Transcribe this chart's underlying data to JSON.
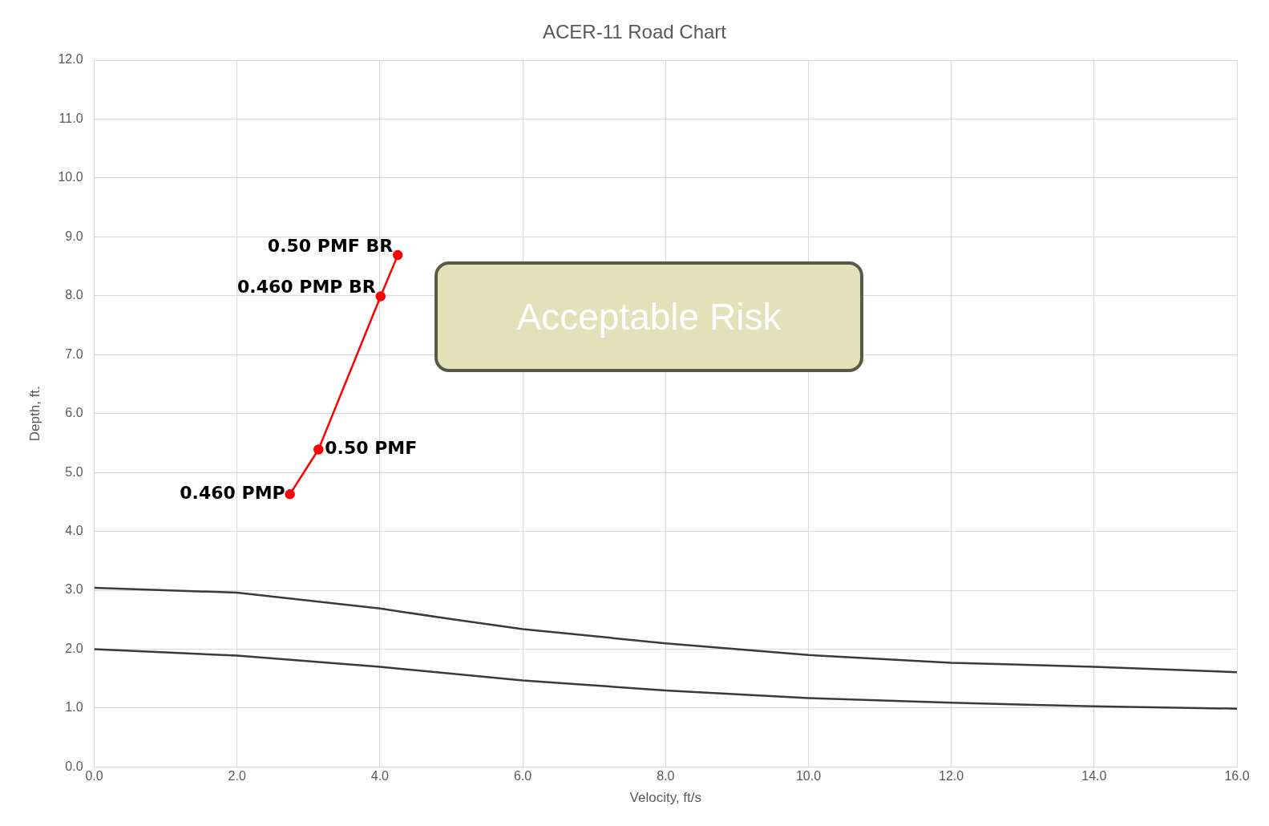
{
  "chart_data": {
    "type": "line",
    "title": "ACER-11 Road Chart",
    "xlabel": "Velocity, ft/s",
    "ylabel": "Depth, ft.",
    "xlim": [
      0,
      16
    ],
    "xticks": [
      {
        "value": 0,
        "label": "0.0"
      },
      {
        "value": 2,
        "label": "2.0"
      },
      {
        "value": 4,
        "label": "4.0"
      },
      {
        "value": 6,
        "label": "6.0"
      },
      {
        "value": 8,
        "label": "8.0"
      },
      {
        "value": 10,
        "label": "10.0"
      },
      {
        "value": 12,
        "label": "12.0"
      },
      {
        "value": 14,
        "label": "14.0"
      },
      {
        "value": 16,
        "label": "16.0"
      }
    ],
    "ylim": [
      0,
      12
    ],
    "yticks": [
      {
        "value": 0,
        "label": "0.0"
      },
      {
        "value": 1,
        "label": "1.0"
      },
      {
        "value": 2,
        "label": "2.0"
      },
      {
        "value": 3,
        "label": "3.0"
      },
      {
        "value": 4,
        "label": "4.0"
      },
      {
        "value": 5,
        "label": "5.0"
      },
      {
        "value": 6,
        "label": "6.0"
      },
      {
        "value": 7,
        "label": "7.0"
      },
      {
        "value": 8,
        "label": "8.0"
      },
      {
        "value": 9,
        "label": "9.0"
      },
      {
        "value": 10,
        "label": "10.0"
      },
      {
        "value": 11,
        "label": "11.0"
      },
      {
        "value": 12,
        "label": "12.0"
      }
    ],
    "grid": true,
    "legend": false,
    "series": [
      {
        "color": "#ff0000",
        "marker": "circle",
        "x": [
          2.74,
          3.14,
          4.01,
          4.25
        ],
        "values": [
          4.63,
          5.39,
          7.99,
          8.69
        ]
      },
      {
        "color": "#3a3a3a",
        "marker": "none",
        "x": [
          0,
          2,
          4,
          5,
          6,
          8,
          10,
          12,
          14,
          16
        ],
        "values": [
          3.04,
          2.96,
          2.69,
          2.51,
          2.34,
          2.1,
          1.9,
          1.77,
          1.7,
          1.61
        ]
      },
      {
        "color": "#3a3a3a",
        "marker": "none",
        "x": [
          0,
          2,
          4,
          6,
          8,
          10,
          12,
          14,
          16
        ],
        "values": [
          2.0,
          1.89,
          1.7,
          1.47,
          1.3,
          1.17,
          1.09,
          1.03,
          0.99
        ]
      }
    ],
    "annotations": [
      {
        "text": "0.460 PMP",
        "x": 2.74,
        "y": 4.63
      },
      {
        "text": "0.50 PMF",
        "x": 3.14,
        "y": 5.39
      },
      {
        "text": "0.460 PMP BR",
        "x": 4.01,
        "y": 7.99
      },
      {
        "text": "0.50 PMF BR",
        "x": 4.25,
        "y": 8.69
      },
      "Acceptable Risk"
    ]
  }
}
